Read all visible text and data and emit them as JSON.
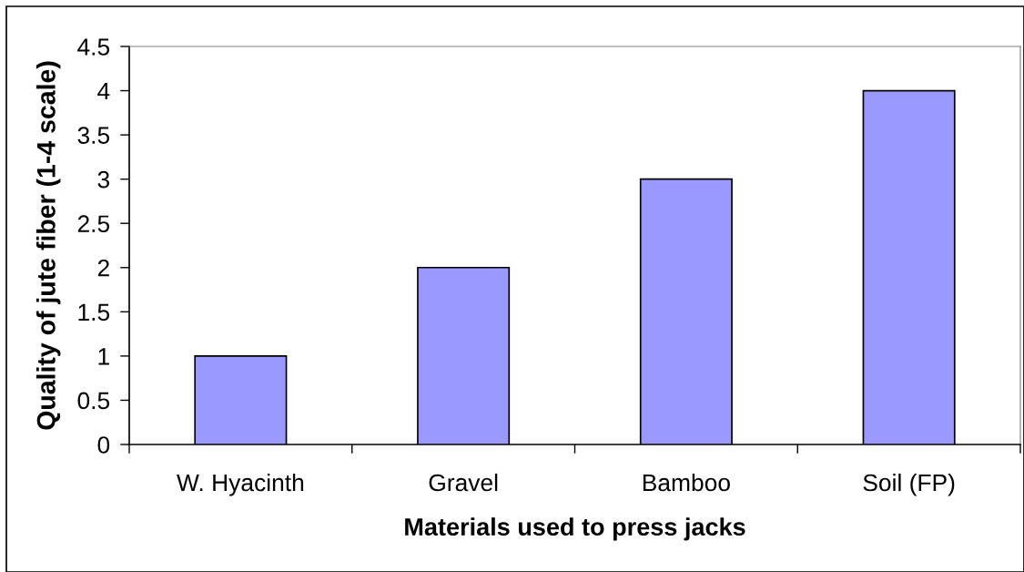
{
  "chart_data": {
    "type": "bar",
    "xlabel": "Materials used to press jacks",
    "ylabel": "Quality of jute fiber (1-4 scale)",
    "categories": [
      "W. Hyacinth",
      "Gravel",
      "Bamboo",
      "Soil (FP)"
    ],
    "values": [
      1,
      2,
      3,
      4
    ],
    "color": "#9999ff",
    "ylim": [
      0,
      4.5
    ],
    "yticks": [
      0,
      0.5,
      1,
      1.5,
      2,
      2.5,
      3,
      3.5,
      4,
      4.5
    ],
    "grid": false,
    "legend": false
  }
}
